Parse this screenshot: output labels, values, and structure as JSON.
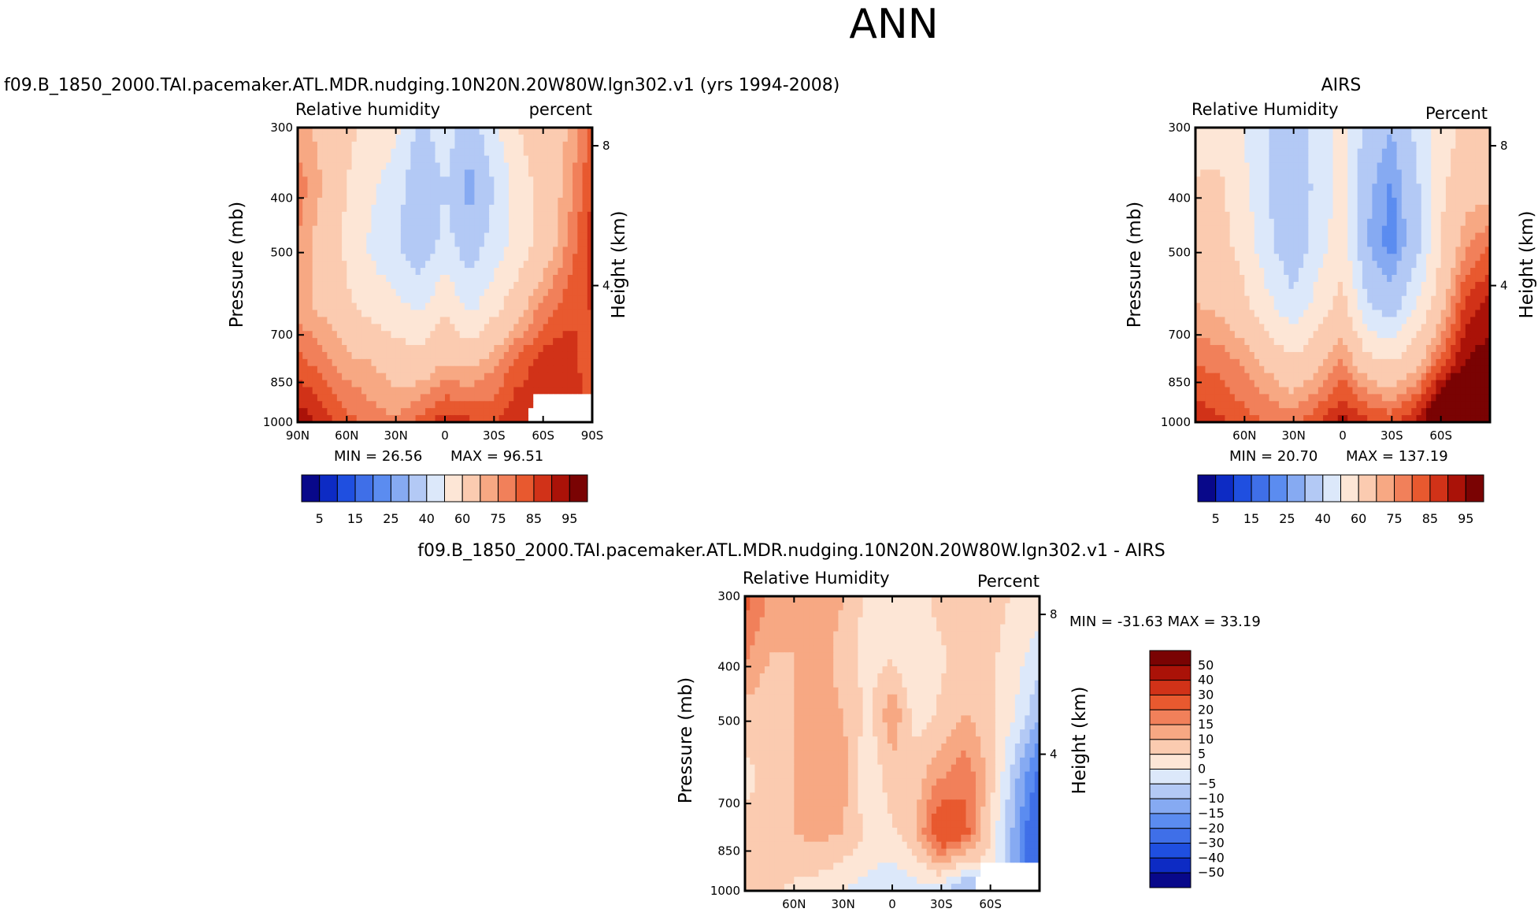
{
  "page_title": "ANN",
  "panels": {
    "model": {
      "title": "f09.B_1850_2000.TAI.pacemaker.ATL.MDR.nudging.10N20N.20W80W.lgn302.v1 (yrs 1994-2008)",
      "left_label": "Relative  humidity",
      "right_label": "percent",
      "ylabel": "Pressure (mb)",
      "y2label": "Height (km)",
      "min_text": "MIN =   26.56",
      "max_text": "MAX =   96.51"
    },
    "obs": {
      "title": "AIRS",
      "left_label": "Relative  Humidity",
      "right_label": "Percent",
      "ylabel": "Pressure (mb)",
      "y2label": "Height (km)",
      "min_text": "MIN =   20.70",
      "max_text": "MAX =  137.19"
    },
    "diff": {
      "title": "f09.B_1850_2000.TAI.pacemaker.ATL.MDR.nudging.10N20N.20W80W.lgn302.v1 - AIRS",
      "left_label": "Relative  Humidity",
      "right_label": "Percent",
      "ylabel": "Pressure (mb)",
      "y2label": "Height (km)",
      "minmax_text": "MIN = -31.63   MAX =   33.19"
    }
  },
  "chart_data": [
    {
      "type": "heatmap",
      "panel": "model",
      "title": "f09.B_1850_2000.TAI.pacemaker.ATL.MDR.nudging.10N20N.20W80W.lgn302.v1 (yrs 1994-2008)",
      "xlabel": "",
      "ylabel": "Pressure (mb)",
      "y2label": "Height (km)",
      "x_ticks": [
        "90N",
        "60N",
        "30N",
        "0",
        "30S",
        "60S",
        "90S"
      ],
      "y_ticks": [
        300,
        400,
        500,
        700,
        850,
        1000
      ],
      "y2_ticks": [
        8,
        4
      ],
      "ylim": [
        1000,
        300
      ],
      "lat": [
        90,
        75,
        60,
        45,
        30,
        15,
        0,
        -15,
        -30,
        -45,
        -60,
        -75,
        -90
      ],
      "pressure": [
        300,
        400,
        500,
        700,
        850,
        1000
      ],
      "values": [
        [
          72,
          68,
          62,
          58,
          52,
          38,
          46,
          34,
          48,
          60,
          66,
          70,
          82
        ],
        [
          78,
          70,
          60,
          52,
          45,
          30,
          40,
          26,
          40,
          55,
          64,
          72,
          85
        ],
        [
          75,
          66,
          58,
          48,
          42,
          32,
          44,
          34,
          44,
          54,
          64,
          76,
          88
        ],
        [
          72,
          68,
          62,
          56,
          52,
          48,
          58,
          46,
          56,
          66,
          76,
          82,
          86
        ],
        [
          82,
          78,
          72,
          70,
          66,
          64,
          70,
          68,
          74,
          82,
          88,
          90,
          80
        ],
        [
          94,
          88,
          82,
          78,
          76,
          82,
          88,
          86,
          84,
          90,
          null,
          null,
          null
        ]
      ],
      "min": 26.56,
      "max": 96.51,
      "colorbar_labels": [
        "5",
        "15",
        "25",
        "40",
        "60",
        "75",
        "85",
        "95"
      ]
    },
    {
      "type": "heatmap",
      "panel": "obs",
      "title": "AIRS",
      "xlabel": "",
      "ylabel": "Pressure (mb)",
      "y2label": "Height (km)",
      "x_ticks": [
        "60N",
        "30N",
        "0",
        "30S",
        "60S"
      ],
      "y_ticks": [
        300,
        400,
        500,
        700,
        850,
        1000
      ],
      "y2_ticks": [
        8,
        4
      ],
      "ylim": [
        1000,
        300
      ],
      "lat": [
        90,
        75,
        60,
        45,
        30,
        15,
        0,
        -15,
        -30,
        -45,
        -60,
        -75,
        -90
      ],
      "pressure": [
        300,
        400,
        500,
        700,
        850,
        1000
      ],
      "values": [
        [
          52,
          56,
          50,
          40,
          34,
          46,
          52,
          36,
          30,
          42,
          56,
          62,
          60
        ],
        [
          62,
          62,
          52,
          40,
          30,
          44,
          54,
          32,
          24,
          38,
          58,
          66,
          66
        ],
        [
          66,
          64,
          56,
          42,
          32,
          46,
          56,
          30,
          22,
          36,
          60,
          74,
          80
        ],
        [
          70,
          68,
          62,
          52,
          42,
          54,
          64,
          40,
          34,
          50,
          66,
          86,
          92
        ],
        [
          80,
          78,
          74,
          68,
          62,
          68,
          76,
          64,
          60,
          68,
          82,
          96,
          98
        ],
        [
          88,
          86,
          82,
          80,
          78,
          84,
          92,
          86,
          84,
          90,
          110,
          124,
          96
        ]
      ],
      "min": 20.7,
      "max": 137.19,
      "colorbar_labels": [
        "5",
        "15",
        "25",
        "40",
        "60",
        "75",
        "85",
        "95"
      ]
    },
    {
      "type": "heatmap",
      "panel": "diff",
      "title": "f09.B_1850_2000.TAI.pacemaker.ATL.MDR.nudging.10N20N.20W80W.lgn302.v1 - AIRS",
      "xlabel": "",
      "ylabel": "Pressure (mb)",
      "y2label": "Height (km)",
      "x_ticks": [
        "60N",
        "30N",
        "0",
        "30S",
        "60S"
      ],
      "y_ticks": [
        300,
        400,
        500,
        700,
        850,
        1000
      ],
      "y2_ticks": [
        8,
        4
      ],
      "ylim": [
        1000,
        300
      ],
      "lat": [
        90,
        75,
        60,
        45,
        30,
        15,
        0,
        -15,
        -30,
        -45,
        -60,
        -75,
        -90
      ],
      "pressure": [
        300,
        400,
        500,
        700,
        850,
        1000
      ],
      "values": [
        [
          22,
          14,
          12,
          14,
          10,
          4,
          2,
          2,
          8,
          10,
          8,
          4,
          2
        ],
        [
          16,
          10,
          10,
          12,
          8,
          2,
          4,
          0,
          4,
          8,
          6,
          2,
          -2
        ],
        [
          8,
          6,
          10,
          12,
          10,
          4,
          14,
          2,
          6,
          10,
          6,
          0,
          -10
        ],
        [
          4,
          6,
          10,
          14,
          12,
          0,
          8,
          8,
          14,
          18,
          8,
          -8,
          -22
        ],
        [
          6,
          6,
          10,
          12,
          10,
          4,
          4,
          10,
          28,
          22,
          4,
          -12,
          -30
        ],
        [
          10,
          6,
          4,
          2,
          0,
          -2,
          -4,
          -2,
          -4,
          -12,
          null,
          null,
          null
        ]
      ],
      "min": -31.63,
      "max": 33.19,
      "colorbar_labels": [
        "50",
        "40",
        "30",
        "20",
        "15",
        "10",
        "5",
        "0",
        "-5",
        "-10",
        "-15",
        "-20",
        "-30",
        "-40",
        "-50"
      ]
    }
  ],
  "colorbars": {
    "abs": {
      "levels": [
        5,
        10,
        15,
        20,
        25,
        30,
        40,
        50,
        60,
        70,
        75,
        80,
        85,
        90,
        95
      ],
      "colors": [
        "#08088a",
        "#0d2bc4",
        "#1f4fe0",
        "#3f6fe8",
        "#5b8cf0",
        "#86aaf2",
        "#b3c9f5",
        "#dce8fa",
        "#fde6d6",
        "#fbcbb0",
        "#f7a883",
        "#f1805a",
        "#e8592f",
        "#d13218",
        "#aa1208",
        "#7a0303"
      ]
    },
    "diff": {
      "levels": [
        -50,
        -40,
        -30,
        -20,
        -15,
        -10,
        -5,
        0,
        5,
        10,
        15,
        20,
        30,
        40,
        50
      ],
      "colors": [
        "#08088a",
        "#0d2bc4",
        "#1f4fe0",
        "#3f6fe8",
        "#5b8cf0",
        "#86aaf2",
        "#b3c9f5",
        "#dce8fa",
        "#fde6d6",
        "#fbcbb0",
        "#f7a883",
        "#f1805a",
        "#e8592f",
        "#d13218",
        "#aa1208",
        "#7a0303"
      ]
    }
  }
}
